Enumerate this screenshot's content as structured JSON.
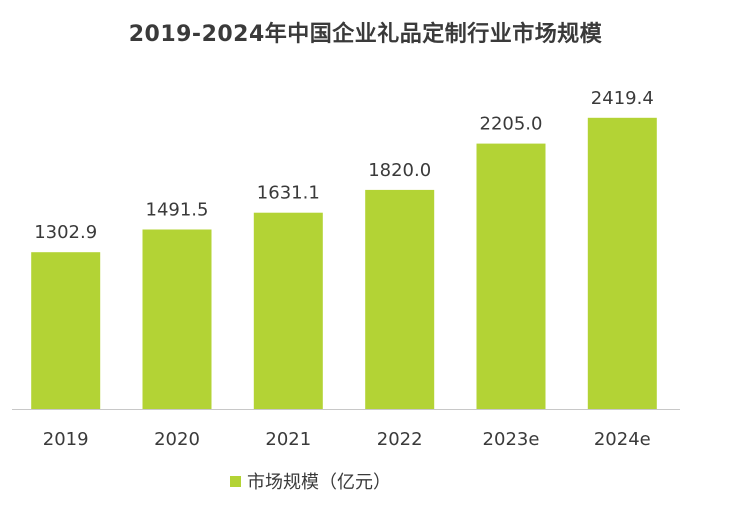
{
  "chart_data": {
    "type": "bar",
    "title": "2019-2024年中国企业礼品定制行业市场规模",
    "categories": [
      "2019",
      "2020",
      "2021",
      "2022",
      "2023e",
      "2024e"
    ],
    "series": [
      {
        "name": "市场规模（亿元）",
        "values": [
          1302.9,
          1491.5,
          1631.1,
          1820.0,
          2205.0,
          2419.4
        ],
        "value_labels": [
          "1302.9",
          "1491.5",
          "1631.1",
          "1820.0",
          "2205.0",
          "2419.4"
        ],
        "color": "#b3d335"
      }
    ],
    "xlabel": "",
    "ylabel": "",
    "ylim": [
      0,
      2800
    ],
    "grid": false,
    "legend": "bottom-center"
  },
  "colors": {
    "bar": "#b3d335",
    "axis": "#c8c8c8",
    "text": "#3a3a3a"
  }
}
